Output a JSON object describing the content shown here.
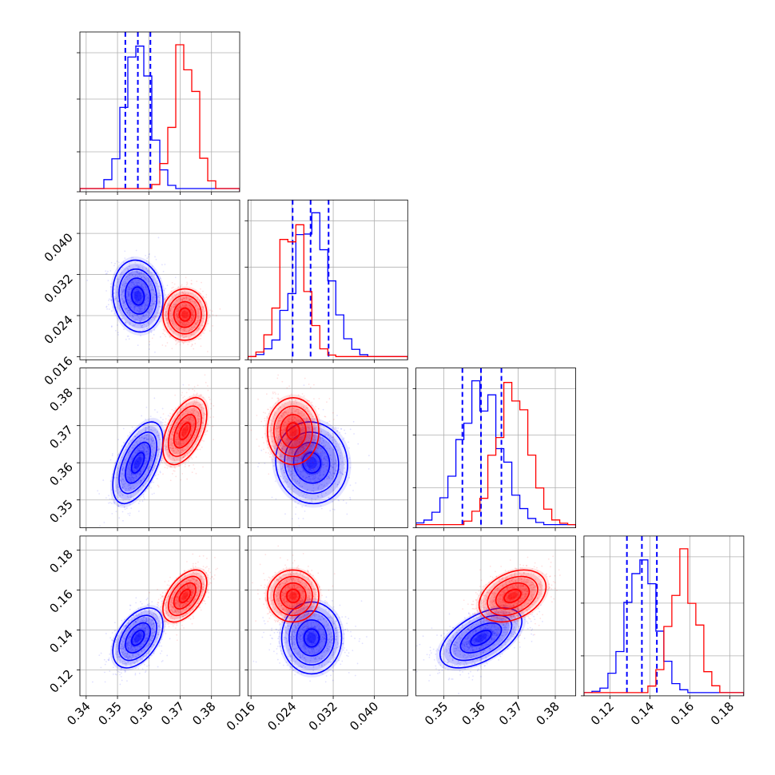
{
  "chart_data": {
    "type": "corner",
    "parameters": [
      "",
      "",
      "",
      ""
    ],
    "colors": {
      "blue": "#0000ff",
      "red": "#ff0000"
    },
    "ranges": [
      [
        0.338,
        0.389
      ],
      [
        0.0154,
        0.0465
      ],
      [
        0.3425,
        0.3855
      ],
      [
        0.107,
        0.187
      ]
    ],
    "ticks": [
      {
        "values": [
          0.34,
          0.35,
          0.36,
          0.37,
          0.38
        ],
        "labels": [
          "0.34",
          "0.35",
          "0.36",
          "0.37",
          "0.38"
        ]
      },
      {
        "values": [
          0.016,
          0.024,
          0.032,
          0.04
        ],
        "labels": [
          "0.016",
          "0.024",
          "0.032",
          "0.040"
        ]
      },
      {
        "values": [
          0.35,
          0.36,
          0.37,
          0.38
        ],
        "labels": [
          "0.35",
          "0.36",
          "0.37",
          "0.38"
        ]
      },
      {
        "values": [
          0.12,
          0.14,
          0.16,
          0.18
        ],
        "labels": [
          "0.12",
          "0.14",
          "0.16",
          "0.18"
        ]
      }
    ],
    "series": [
      {
        "color": "#0000ff",
        "mean": [
          0.3565,
          0.0278,
          0.36,
          0.136
        ],
        "std": [
          0.004,
          0.0035,
          0.0055,
          0.0075
        ],
        "quantiles": [
          [
            0.3525,
            0.3565,
            0.3605
          ],
          [
            0.0241,
            0.0276,
            0.0311
          ],
          [
            0.355,
            0.36,
            0.3655
          ],
          [
            0.1285,
            0.136,
            0.1435
          ]
        ]
      },
      {
        "color": "#ff0000",
        "mean": [
          0.3715,
          0.0242,
          0.3685,
          0.157
        ],
        "std": [
          0.0035,
          0.0025,
          0.0045,
          0.0065
        ],
        "quantiles": []
      }
    ],
    "grid": true
  }
}
